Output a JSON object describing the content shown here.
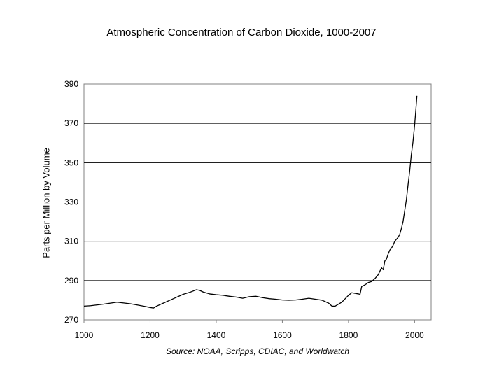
{
  "chart_data": {
    "type": "line",
    "title": "Atmospheric Concentration of Carbon Dioxide, 1000-2007",
    "xlabel": "Source: NOAA, Scripps, CDIAC, and Worldwatch",
    "ylabel": "Parts per Million by Volume",
    "xlim": [
      1000,
      2050
    ],
    "ylim": [
      270,
      390
    ],
    "xticks": [
      1000,
      1200,
      1400,
      1600,
      1800,
      2000
    ],
    "yticks": [
      270,
      290,
      310,
      330,
      350,
      370,
      390
    ],
    "grid": "horizontal",
    "legend": "none",
    "line_color": "#000000",
    "series": [
      {
        "x": [
          1000,
          1020,
          1040,
          1060,
          1080,
          1100,
          1120,
          1140,
          1160,
          1180,
          1200,
          1210,
          1220,
          1240,
          1260,
          1280,
          1300,
          1320,
          1340,
          1350,
          1360,
          1380,
          1400,
          1420,
          1440,
          1460,
          1480,
          1500,
          1520,
          1540,
          1560,
          1580,
          1600,
          1620,
          1640,
          1660,
          1680,
          1700,
          1720,
          1740,
          1750,
          1760,
          1780,
          1800,
          1810,
          1820,
          1830,
          1835,
          1840,
          1850,
          1860,
          1870,
          1880,
          1890,
          1900,
          1905,
          1910,
          1915,
          1920,
          1925,
          1930,
          1935,
          1940,
          1945,
          1950,
          1955,
          1960,
          1965,
          1970,
          1975,
          1980,
          1985,
          1990,
          1995,
          2000,
          2005,
          2007
        ],
        "values": [
          277.0,
          277.2,
          277.6,
          278.0,
          278.5,
          279.0,
          278.6,
          278.2,
          277.6,
          277.0,
          276.3,
          276.0,
          277.0,
          278.5,
          280.0,
          281.5,
          283.0,
          284.0,
          285.3,
          285.0,
          284.2,
          283.2,
          282.8,
          282.5,
          282.0,
          281.6,
          281.0,
          281.8,
          282.0,
          281.3,
          280.8,
          280.5,
          280.1,
          280.0,
          280.1,
          280.5,
          281.0,
          280.5,
          280.0,
          278.5,
          277.0,
          277.0,
          279.0,
          282.5,
          283.8,
          283.5,
          283.2,
          283.0,
          287.0,
          287.8,
          289.0,
          289.5,
          291.0,
          293.0,
          296.5,
          295.5,
          300.0,
          301.0,
          303.5,
          305.5,
          306.5,
          308.0,
          310.0,
          311.0,
          312.0,
          313.5,
          316.5,
          320.0,
          325.5,
          331.0,
          338.5,
          345.5,
          354.0,
          360.5,
          369.0,
          379.5,
          384.0
        ]
      }
    ]
  }
}
